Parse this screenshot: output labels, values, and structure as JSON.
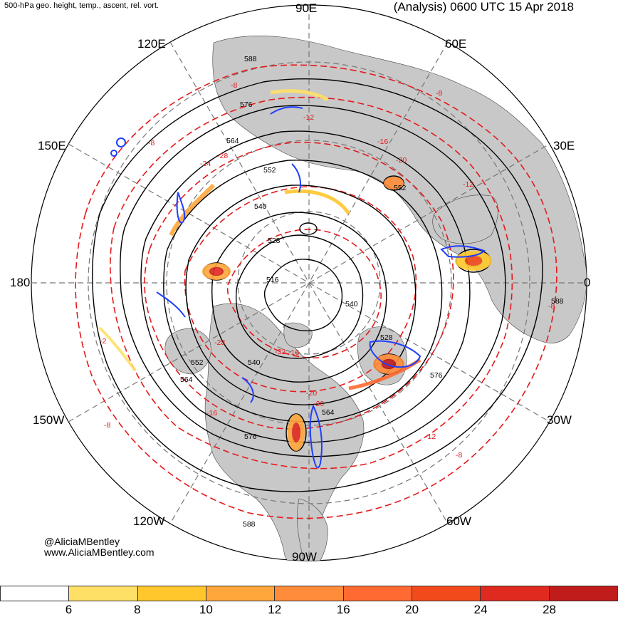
{
  "header": {
    "left_title": "500-hPa geo. height, temp., ascent, rel. vort.",
    "right_title": "(Analysis) 0600 UTC 15 Apr 2018"
  },
  "longitudes": {
    "lon_90e": "90E",
    "lon_120e": "120E",
    "lon_60e": "60E",
    "lon_150e": "150E",
    "lon_30e": "30E",
    "lon_180": "180",
    "lon_0": "0",
    "lon_150w": "150W",
    "lon_30w": "30W",
    "lon_120w": "120W",
    "lon_60w": "60W",
    "lon_90w": "90W"
  },
  "credit": {
    "handle": "@AliciaMBentley",
    "website": "www.AliciaMBentley.com"
  },
  "height_labels": [
    "588",
    "576",
    "564",
    "552",
    "540",
    "528",
    "516",
    "552",
    "540",
    "528",
    "576",
    "564",
    "588",
    "576",
    "564",
    "552",
    "540",
    "588"
  ],
  "temp_labels": [
    "-8",
    "-12",
    "-16",
    "-20",
    "-24",
    "-28",
    "-32",
    "-8",
    "-12",
    "-16",
    "-20",
    "-28",
    "-8",
    "-12",
    "-8",
    "-2",
    "-8",
    "-16",
    "-20",
    "-8"
  ],
  "colors": {
    "land": "#c8c8c8",
    "ocean": "#ffffff",
    "height_contour": "#000000",
    "temp_contour": "#e41a1c",
    "ascent_contour": "#1f3fff",
    "grid": "#777777"
  },
  "colorbar": {
    "colors": [
      "#ffffff",
      "#ffe066",
      "#ffc72c",
      "#ffa73a",
      "#ff8c3a",
      "#ff6a32",
      "#f24a1a",
      "#e02a20",
      "#c01c1c"
    ],
    "labels": [
      "6",
      "8",
      "10",
      "12",
      "16",
      "20",
      "24",
      "28"
    ]
  }
}
